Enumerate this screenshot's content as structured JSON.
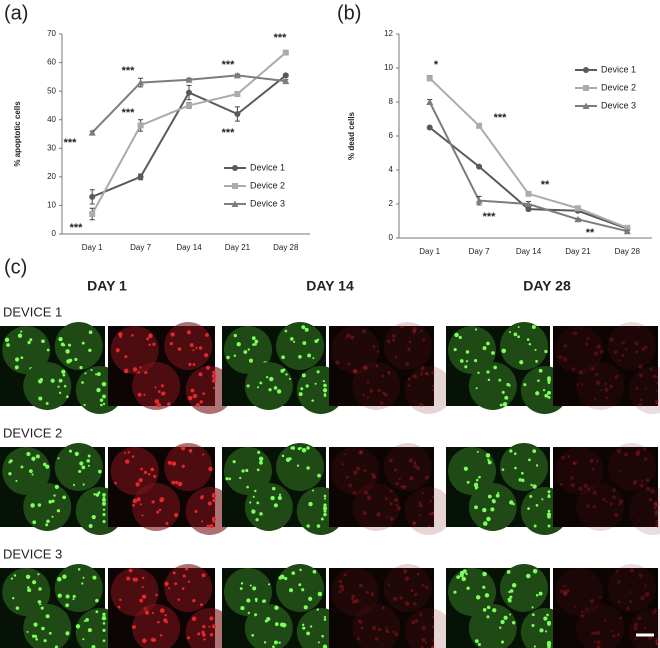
{
  "panel_labels": [
    "(a)",
    "(b)",
    "(c)"
  ],
  "chart_data": [
    {
      "type": "line",
      "y_label": "% apoptotic cells",
      "categories": [
        "Day 1",
        "Day 7",
        "Day 14",
        "Day 21",
        "Day 28"
      ],
      "ylim": [
        0,
        70
      ],
      "yticks": [
        0,
        10,
        20,
        30,
        40,
        50,
        60,
        70
      ],
      "series": [
        {
          "name": "Device 1",
          "color": "#5a5a5a",
          "marker": "circle",
          "values": [
            13,
            20,
            49.5,
            42,
            55.5
          ],
          "errors": [
            2.5,
            1,
            2.5,
            2.5,
            0.5
          ]
        },
        {
          "name": "Device 2",
          "color": "#ababab",
          "marker": "square",
          "values": [
            7,
            38,
            45,
            49,
            63.5
          ],
          "errors": [
            2,
            2,
            1,
            0.5,
            0.5
          ]
        },
        {
          "name": "Device 3",
          "color": "#7c7c7c",
          "marker": "triangle",
          "values": [
            35.5,
            53,
            54,
            55.5,
            53.5
          ],
          "errors": [
            0.5,
            1.5,
            0.5,
            0.5,
            0.5
          ]
        }
      ],
      "annotations": [
        "***",
        "***",
        "***",
        "***",
        "***",
        "***",
        "***"
      ]
    },
    {
      "type": "line",
      "y_label": "% dead cells",
      "categories": [
        "Day 1",
        "Day 7",
        "Day 14",
        "Day 21",
        "Day 28"
      ],
      "ylim": [
        0,
        12
      ],
      "yticks": [
        0,
        2,
        4,
        6,
        8,
        10,
        12
      ],
      "series": [
        {
          "name": "Device 1",
          "color": "#5a5a5a",
          "marker": "circle",
          "values": [
            6.5,
            4.2,
            1.7,
            1.6,
            0.55
          ],
          "errors": [
            0.05,
            0.05,
            0.1,
            0.1,
            0.05
          ]
        },
        {
          "name": "Device 2",
          "color": "#ababab",
          "marker": "square",
          "values": [
            9.4,
            6.6,
            2.6,
            1.75,
            0.6
          ],
          "errors": [
            0.15,
            0.05,
            0.05,
            0.1,
            0.05
          ]
        },
        {
          "name": "Device 3",
          "color": "#7c7c7c",
          "marker": "triangle",
          "values": [
            8.0,
            2.2,
            2.0,
            1.1,
            0.4
          ],
          "errors": [
            0.15,
            0.25,
            0.15,
            0.05,
            0.05
          ]
        }
      ],
      "annotations": [
        "*",
        "***",
        "***",
        "**",
        "**"
      ]
    }
  ],
  "images": {
    "columns": [
      "DAY 1",
      "DAY 14",
      "DAY 28"
    ],
    "rows": [
      "DEVICE 1",
      "DEVICE 2",
      "DEVICE 3"
    ]
  }
}
